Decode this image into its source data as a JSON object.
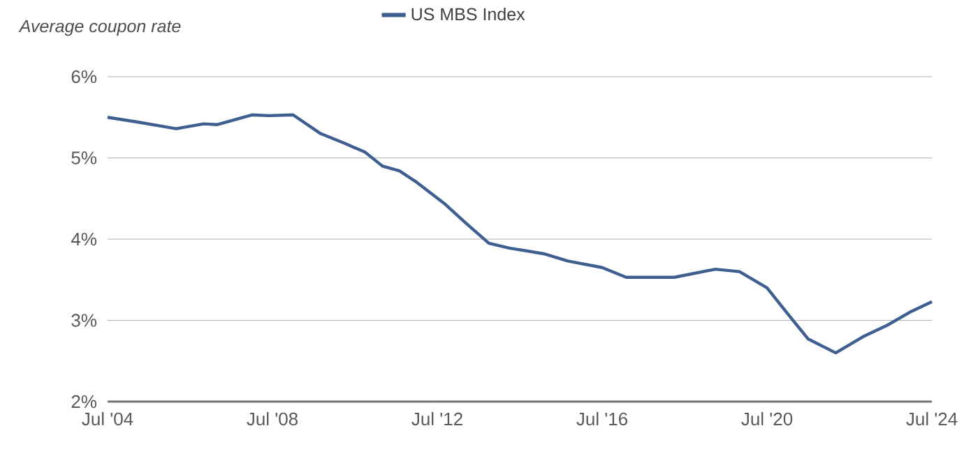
{
  "chart_data": {
    "type": "line",
    "ylabel": "Average coupon rate",
    "x": [
      "2004-07",
      "2005-04",
      "2006-03",
      "2006-11",
      "2007-03",
      "2008-01",
      "2008-06",
      "2009-01",
      "2009-09",
      "2010-04",
      "2010-10",
      "2011-03",
      "2011-08",
      "2012-01",
      "2012-09",
      "2013-03",
      "2013-10",
      "2014-04",
      "2015-02",
      "2015-09",
      "2016-07",
      "2017-02",
      "2018-04",
      "2019-04",
      "2019-11",
      "2020-07",
      "2021-02",
      "2021-07",
      "2022-03",
      "2022-11",
      "2023-06",
      "2024-01",
      "2024-07"
    ],
    "series": [
      {
        "name": "US MBS Index",
        "color": "#3f5f91",
        "values": [
          5.5,
          5.44,
          5.36,
          5.42,
          5.41,
          5.53,
          5.52,
          5.53,
          5.3,
          5.18,
          5.07,
          4.9,
          4.84,
          4.7,
          4.44,
          4.21,
          3.95,
          3.89,
          3.82,
          3.73,
          3.65,
          3.53,
          3.53,
          3.63,
          3.6,
          3.4,
          3.03,
          2.77,
          2.6,
          2.8,
          2.94,
          3.11,
          3.23
        ]
      }
    ],
    "xlim": [
      "2004-07",
      "2024-07"
    ],
    "xticks": [
      {
        "value": "2004-07",
        "label": "Jul '04"
      },
      {
        "value": "2008-07",
        "label": "Jul '08"
      },
      {
        "value": "2012-07",
        "label": "Jul '12"
      },
      {
        "value": "2016-07",
        "label": "Jul '16"
      },
      {
        "value": "2020-07",
        "label": "Jul '20"
      },
      {
        "value": "2024-07",
        "label": "Jul '24"
      }
    ],
    "ylim": [
      2,
      6
    ],
    "yticks": [
      {
        "value": 2,
        "label": "2%"
      },
      {
        "value": 3,
        "label": "3%"
      },
      {
        "value": 4,
        "label": "4%"
      },
      {
        "value": 5,
        "label": "5%"
      },
      {
        "value": 6,
        "label": "6%"
      }
    ],
    "grid": "y",
    "legend": "top",
    "marker": "none",
    "line_style": "solid"
  }
}
